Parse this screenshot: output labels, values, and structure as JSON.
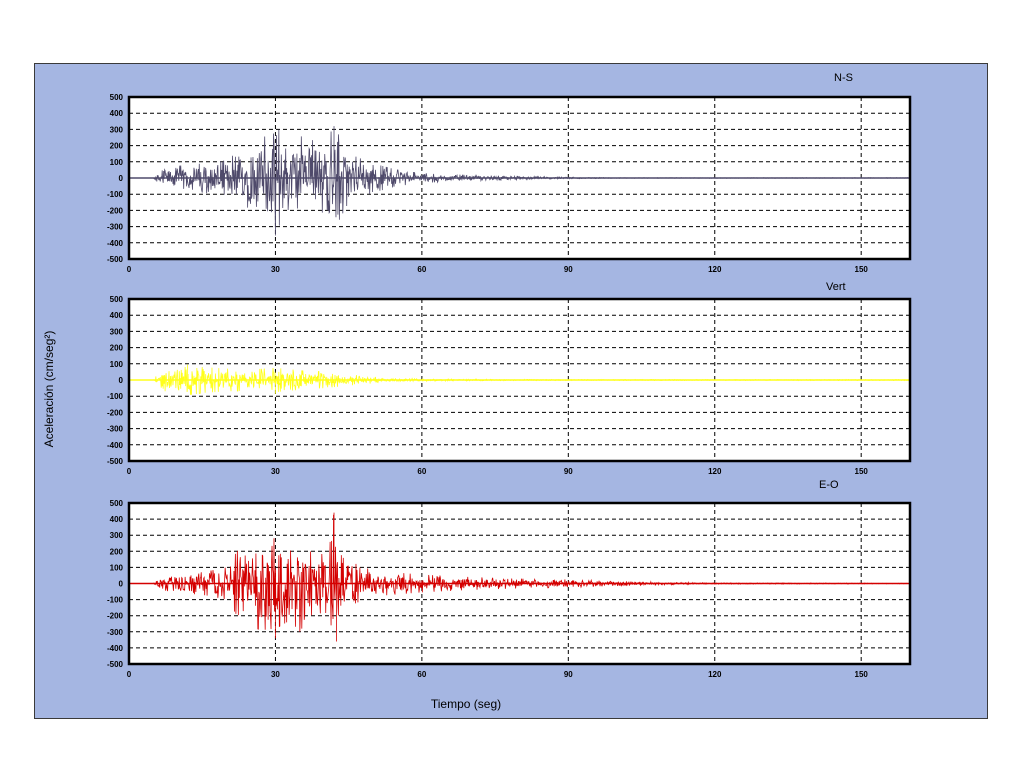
{
  "figure": {
    "ylabel": "Aceleración (cm/seg²)",
    "xlabel": "Tiempo (seg)"
  },
  "chart_data": [
    {
      "type": "line",
      "title": "N-S",
      "color": "#4f4a6b",
      "xlim": [
        0,
        160
      ],
      "ylim": [
        -500,
        500
      ],
      "xticks": [
        0,
        30,
        60,
        90,
        120,
        150
      ],
      "xtick_labels": [
        "0",
        "30",
        "60",
        "90",
        "120",
        "150"
      ],
      "yticks": [
        500,
        400,
        300,
        200,
        100,
        0,
        -100,
        -200,
        -300,
        -400,
        -500
      ],
      "ytick_labels": [
        "500",
        "400",
        "300",
        "200",
        "100",
        "0",
        "-100",
        "-200",
        "-300",
        "-400",
        "-500"
      ],
      "grid": true,
      "envelope": {
        "t": [
          0,
          5,
          6,
          10,
          15,
          20,
          24,
          27,
          29,
          30,
          32,
          35,
          38,
          40,
          42,
          45,
          50,
          55,
          60,
          70,
          80,
          90,
          100,
          160
        ],
        "amplitude": [
          0,
          0,
          40,
          75,
          90,
          110,
          200,
          260,
          250,
          330,
          240,
          260,
          230,
          210,
          320,
          150,
          90,
          50,
          30,
          18,
          10,
          5,
          2,
          2
        ]
      },
      "peaks": [
        {
          "t": 30,
          "value": -355
        },
        {
          "t": 42,
          "value": 320
        }
      ]
    },
    {
      "type": "line",
      "title": "Vert",
      "color": "#ffff1a",
      "xlim": [
        0,
        160
      ],
      "ylim": [
        -500,
        500
      ],
      "xticks": [
        0,
        30,
        60,
        90,
        120,
        150
      ],
      "xtick_labels": [
        "0",
        "30",
        "60",
        "90",
        "120",
        "150"
      ],
      "yticks": [
        500,
        400,
        300,
        200,
        100,
        0,
        -100,
        -200,
        -300,
        -400,
        -500
      ],
      "ytick_labels": [
        "500",
        "400",
        "300",
        "200",
        "100",
        "0",
        "-100",
        "-200",
        "-300",
        "-400",
        "-500"
      ],
      "grid": true,
      "envelope": {
        "t": [
          0,
          5,
          6,
          8,
          12,
          15,
          20,
          25,
          30,
          35,
          40,
          45,
          50,
          55,
          60,
          70,
          90,
          160
        ],
        "amplitude": [
          0,
          0,
          45,
          80,
          95,
          80,
          70,
          65,
          75,
          60,
          50,
          35,
          20,
          12,
          8,
          5,
          3,
          3
        ]
      },
      "peaks": [
        {
          "t": 12,
          "value": 95
        },
        {
          "t": 30,
          "value": -85
        }
      ]
    },
    {
      "type": "line",
      "title": "E-O",
      "color": "#d40000",
      "xlim": [
        0,
        160
      ],
      "ylim": [
        -500,
        500
      ],
      "xticks": [
        0,
        30,
        60,
        90,
        120,
        150
      ],
      "xtick_labels": [
        "0",
        "30",
        "60",
        "90",
        "120",
        "150"
      ],
      "yticks": [
        500,
        400,
        300,
        200,
        100,
        0,
        -100,
        -200,
        -300,
        -400,
        -500
      ],
      "ytick_labels": [
        "500",
        "400",
        "300",
        "200",
        "100",
        "0",
        "-100",
        "-200",
        "-300",
        "-400",
        "-500"
      ],
      "grid": true,
      "envelope": {
        "t": [
          0,
          5,
          6,
          10,
          15,
          20,
          23,
          27,
          30,
          33,
          35,
          37,
          40,
          42,
          43,
          45,
          50,
          60,
          70,
          80,
          90,
          100,
          110,
          120,
          160
        ],
        "amplitude": [
          0,
          0,
          35,
          60,
          70,
          100,
          240,
          290,
          280,
          230,
          300,
          200,
          180,
          440,
          250,
          140,
          80,
          55,
          40,
          30,
          25,
          15,
          8,
          4,
          2
        ]
      },
      "peaks": [
        {
          "t": 42,
          "value": 440
        },
        {
          "t": 42.5,
          "value": -360
        },
        {
          "t": 30,
          "value": -340
        }
      ]
    }
  ]
}
